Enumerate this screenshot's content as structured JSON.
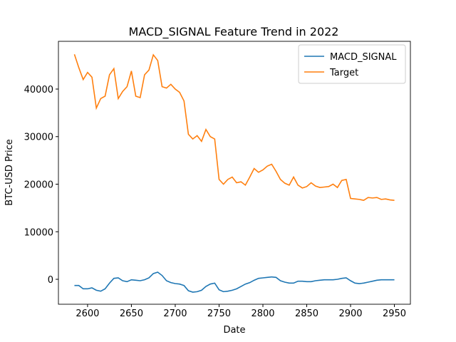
{
  "chart_data": {
    "type": "line",
    "title": "MACD_SIGNAL Feature Trend in 2022",
    "x_label": "Date",
    "y_label": "BTC-USD Price",
    "x": [
      2585,
      2590,
      2595,
      2600,
      2605,
      2610,
      2615,
      2620,
      2625,
      2630,
      2635,
      2640,
      2645,
      2650,
      2655,
      2660,
      2665,
      2670,
      2675,
      2680,
      2685,
      2690,
      2695,
      2700,
      2705,
      2710,
      2715,
      2720,
      2725,
      2730,
      2735,
      2740,
      2745,
      2750,
      2755,
      2760,
      2765,
      2770,
      2775,
      2780,
      2785,
      2790,
      2795,
      2800,
      2805,
      2810,
      2815,
      2820,
      2825,
      2830,
      2835,
      2840,
      2845,
      2850,
      2855,
      2860,
      2865,
      2870,
      2875,
      2880,
      2885,
      2890,
      2895,
      2900,
      2905,
      2910,
      2915,
      2920,
      2925,
      2930,
      2935,
      2940,
      2945,
      2950
    ],
    "series": [
      {
        "name": "MACD_SIGNAL",
        "color": "#1f77b4",
        "values": [
          -1300,
          -1300,
          -2000,
          -2000,
          -1800,
          -2300,
          -2500,
          -2000,
          -800,
          200,
          300,
          -300,
          -500,
          -100,
          -200,
          -300,
          -100,
          300,
          1200,
          1500,
          800,
          -300,
          -700,
          -900,
          -1000,
          -1300,
          -2400,
          -2700,
          -2600,
          -2300,
          -1500,
          -1000,
          -800,
          -2200,
          -2600,
          -2500,
          -2300,
          -2000,
          -1500,
          -1000,
          -700,
          -200,
          200,
          300,
          400,
          500,
          400,
          -300,
          -600,
          -800,
          -800,
          -400,
          -400,
          -500,
          -500,
          -300,
          -200,
          -100,
          -100,
          -100,
          0,
          200,
          300,
          -300,
          -800,
          -900,
          -800,
          -600,
          -400,
          -200,
          -100,
          -100,
          -100,
          -100
        ]
      },
      {
        "name": "Target",
        "color": "#ff7f0e",
        "values": [
          47300,
          44500,
          42000,
          43500,
          42500,
          36000,
          38000,
          38500,
          43000,
          44300,
          38000,
          39500,
          40500,
          43800,
          38500,
          38200,
          43000,
          44000,
          47200,
          46000,
          40500,
          40200,
          41000,
          40000,
          39300,
          37500,
          30500,
          29500,
          30200,
          29000,
          31500,
          30000,
          29500,
          21000,
          20000,
          21000,
          21500,
          20300,
          20500,
          19800,
          21500,
          23300,
          22500,
          23000,
          23800,
          24200,
          22700,
          21000,
          20200,
          19800,
          21500,
          19800,
          19200,
          19500,
          20300,
          19600,
          19300,
          19400,
          19500,
          20000,
          19300,
          20800,
          21000,
          17000,
          16900,
          16800,
          16600,
          17200,
          17100,
          17200,
          16800,
          16900,
          16700,
          16600
        ]
      }
    ],
    "xlim": [
      2566.75,
      2968.25
    ],
    "ylim": [
      -5243,
      50037
    ],
    "xticks": [
      2600,
      2650,
      2700,
      2750,
      2800,
      2850,
      2900,
      2950
    ],
    "yticks": [
      0,
      10000,
      20000,
      30000,
      40000
    ],
    "legend": "upper right",
    "grid": false
  }
}
